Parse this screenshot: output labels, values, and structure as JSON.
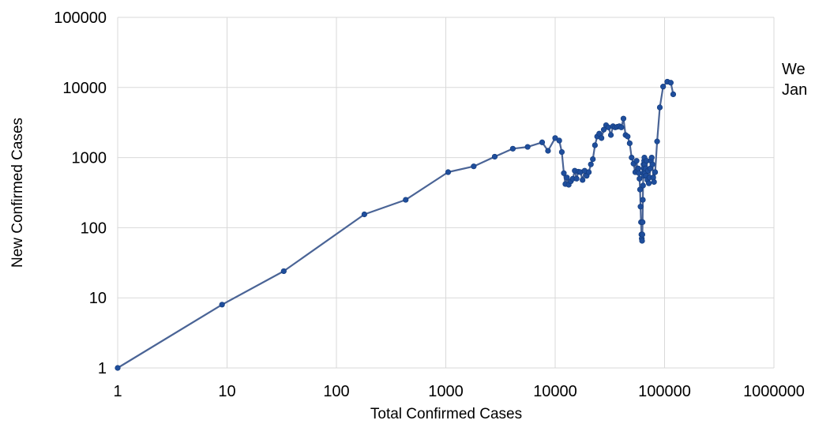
{
  "chart_data": {
    "type": "line",
    "xlabel": "Total Confirmed Cases",
    "ylabel": "New Confirmed Cases",
    "x_scale": "log",
    "y_scale": "log",
    "xlim": [
      1,
      1000000
    ],
    "ylim": [
      1,
      100000
    ],
    "x_ticks": [
      "1",
      "10",
      "100",
      "1000",
      "10000",
      "100000",
      "1000000"
    ],
    "y_ticks": [
      "1",
      "10",
      "100",
      "1000",
      "10000",
      "100000"
    ],
    "grid": true,
    "annotation": [
      "We",
      "Jan"
    ],
    "colors": {
      "line": "#4a6496",
      "marker": "#1f4e9c"
    },
    "series": [
      {
        "x": [
          1,
          9,
          33,
          180,
          430,
          1050,
          1800,
          2800,
          4100,
          5600,
          7600,
          8600,
          10000,
          10900,
          11500,
          12000,
          12400,
          12800,
          13300,
          13900,
          14500,
          15100,
          15700,
          16300,
          17000,
          17800,
          18600,
          19400,
          20300,
          21200,
          22100,
          23100,
          24200,
          25300,
          26500,
          27800,
          29200,
          30700,
          32300,
          33800,
          35400,
          37000,
          38600,
          40300,
          42100,
          44000,
          46000,
          48000,
          50000,
          52000,
          54000,
          55500,
          56500,
          57500,
          58300,
          59000,
          59700,
          60300,
          60900,
          61400,
          61900,
          62300,
          62700,
          63000,
          63300,
          63600,
          63900,
          64200,
          64500,
          64800,
          65100,
          65400,
          65700,
          66000,
          66500,
          67100,
          67800,
          68700,
          69700,
          70700,
          71800,
          72900,
          74000,
          75100,
          76300,
          77500,
          78800,
          80100,
          82000,
          85500,
          90500,
          97000,
          106000,
          114000,
          120000
        ],
        "y": [
          1,
          8,
          24,
          155,
          250,
          620,
          750,
          1030,
          1340,
          1420,
          1650,
          1250,
          1900,
          1750,
          1200,
          600,
          420,
          520,
          410,
          460,
          500,
          650,
          500,
          630,
          620,
          480,
          650,
          550,
          620,
          800,
          950,
          1500,
          2000,
          2200,
          1900,
          2500,
          2900,
          2700,
          2100,
          2800,
          2700,
          2750,
          2800,
          2700,
          3600,
          2100,
          2000,
          1600,
          1000,
          820,
          620,
          900,
          650,
          700,
          600,
          500,
          350,
          200,
          120,
          80,
          70,
          65,
          80,
          120,
          250,
          400,
          600,
          800,
          700,
          550,
          900,
          1000,
          800,
          650,
          600,
          700,
          550,
          900,
          480,
          650,
          430,
          520,
          700,
          900,
          1000,
          800,
          520,
          450,
          620,
          1700,
          5200,
          10300,
          12100,
          11700,
          8000
        ]
      }
    ]
  }
}
